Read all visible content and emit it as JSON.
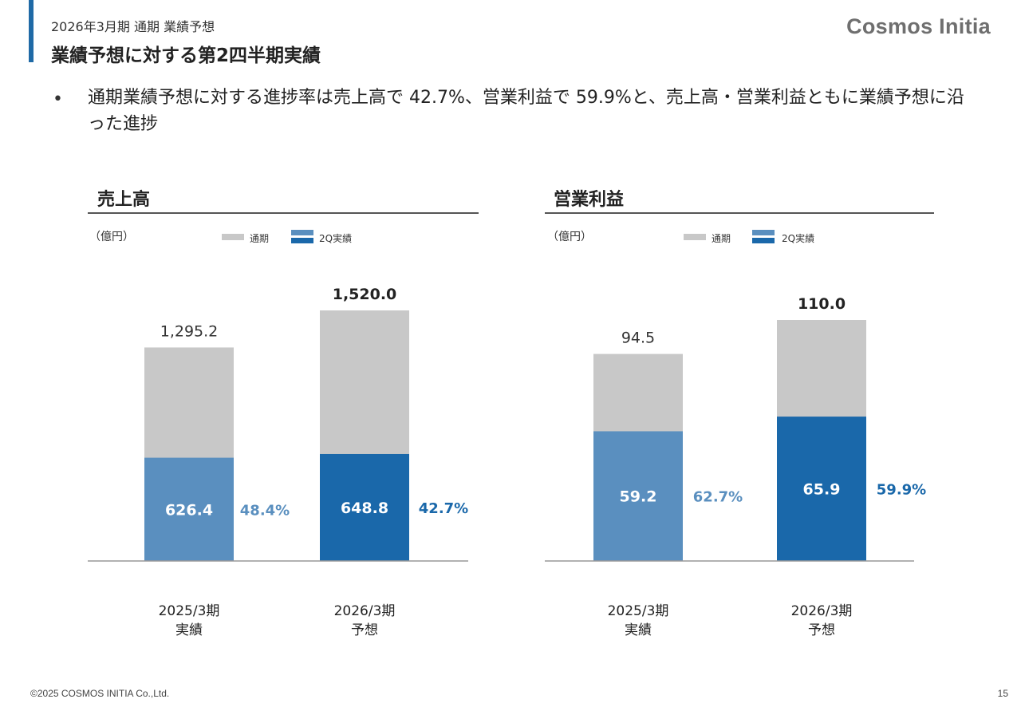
{
  "header": {
    "subtitle": "2026年3月期 通期 業績予想",
    "title": "業績予想に対する第2四半期実績",
    "logo_text": "Cosmos Initia"
  },
  "bullet": {
    "marker": "•",
    "text": "通期業績予想に対する進捗率は売上高で 42.7%、営業利益で 59.9%と、売上高・営業利益ともに業績予想に沿った進捗"
  },
  "legend": {
    "full_year": "通期",
    "q2_actual": "2Q実績"
  },
  "colors": {
    "full_year": "#c8c8c8",
    "q2_prev": "#5a8fbf",
    "q2_curr": "#1a68aa",
    "axis": "#999999"
  },
  "chart_data": [
    {
      "type": "bar",
      "title": "売上高",
      "unit": "（億円）",
      "categories": [
        "2025/3期\n実績",
        "2026/3期\n予想"
      ],
      "series": [
        {
          "name": "通期",
          "values": [
            1295.2,
            1520.0
          ],
          "labels": [
            "1,295.2",
            "1,520.0"
          ]
        },
        {
          "name": "2Q実績",
          "values": [
            626.4,
            648.8
          ],
          "labels": [
            "626.4",
            "648.8"
          ]
        }
      ],
      "progress_rates": [
        "48.4%",
        "42.7%"
      ],
      "ylim": [
        0,
        1520.0
      ]
    },
    {
      "type": "bar",
      "title": "営業利益",
      "unit": "（億円）",
      "categories": [
        "2025/3期\n実績",
        "2026/3期\n予想"
      ],
      "series": [
        {
          "name": "通期",
          "values": [
            94.5,
            110.0
          ],
          "labels": [
            "94.5",
            "110.0"
          ]
        },
        {
          "name": "2Q実績",
          "values": [
            59.2,
            65.9
          ],
          "labels": [
            "59.2",
            "65.9"
          ]
        }
      ],
      "progress_rates": [
        "62.7%",
        "59.9%"
      ],
      "ylim": [
        0,
        110.0
      ]
    }
  ],
  "footer": {
    "copyright": "©2025 COSMOS INITIA Co.,Ltd.",
    "page_number": "15"
  }
}
